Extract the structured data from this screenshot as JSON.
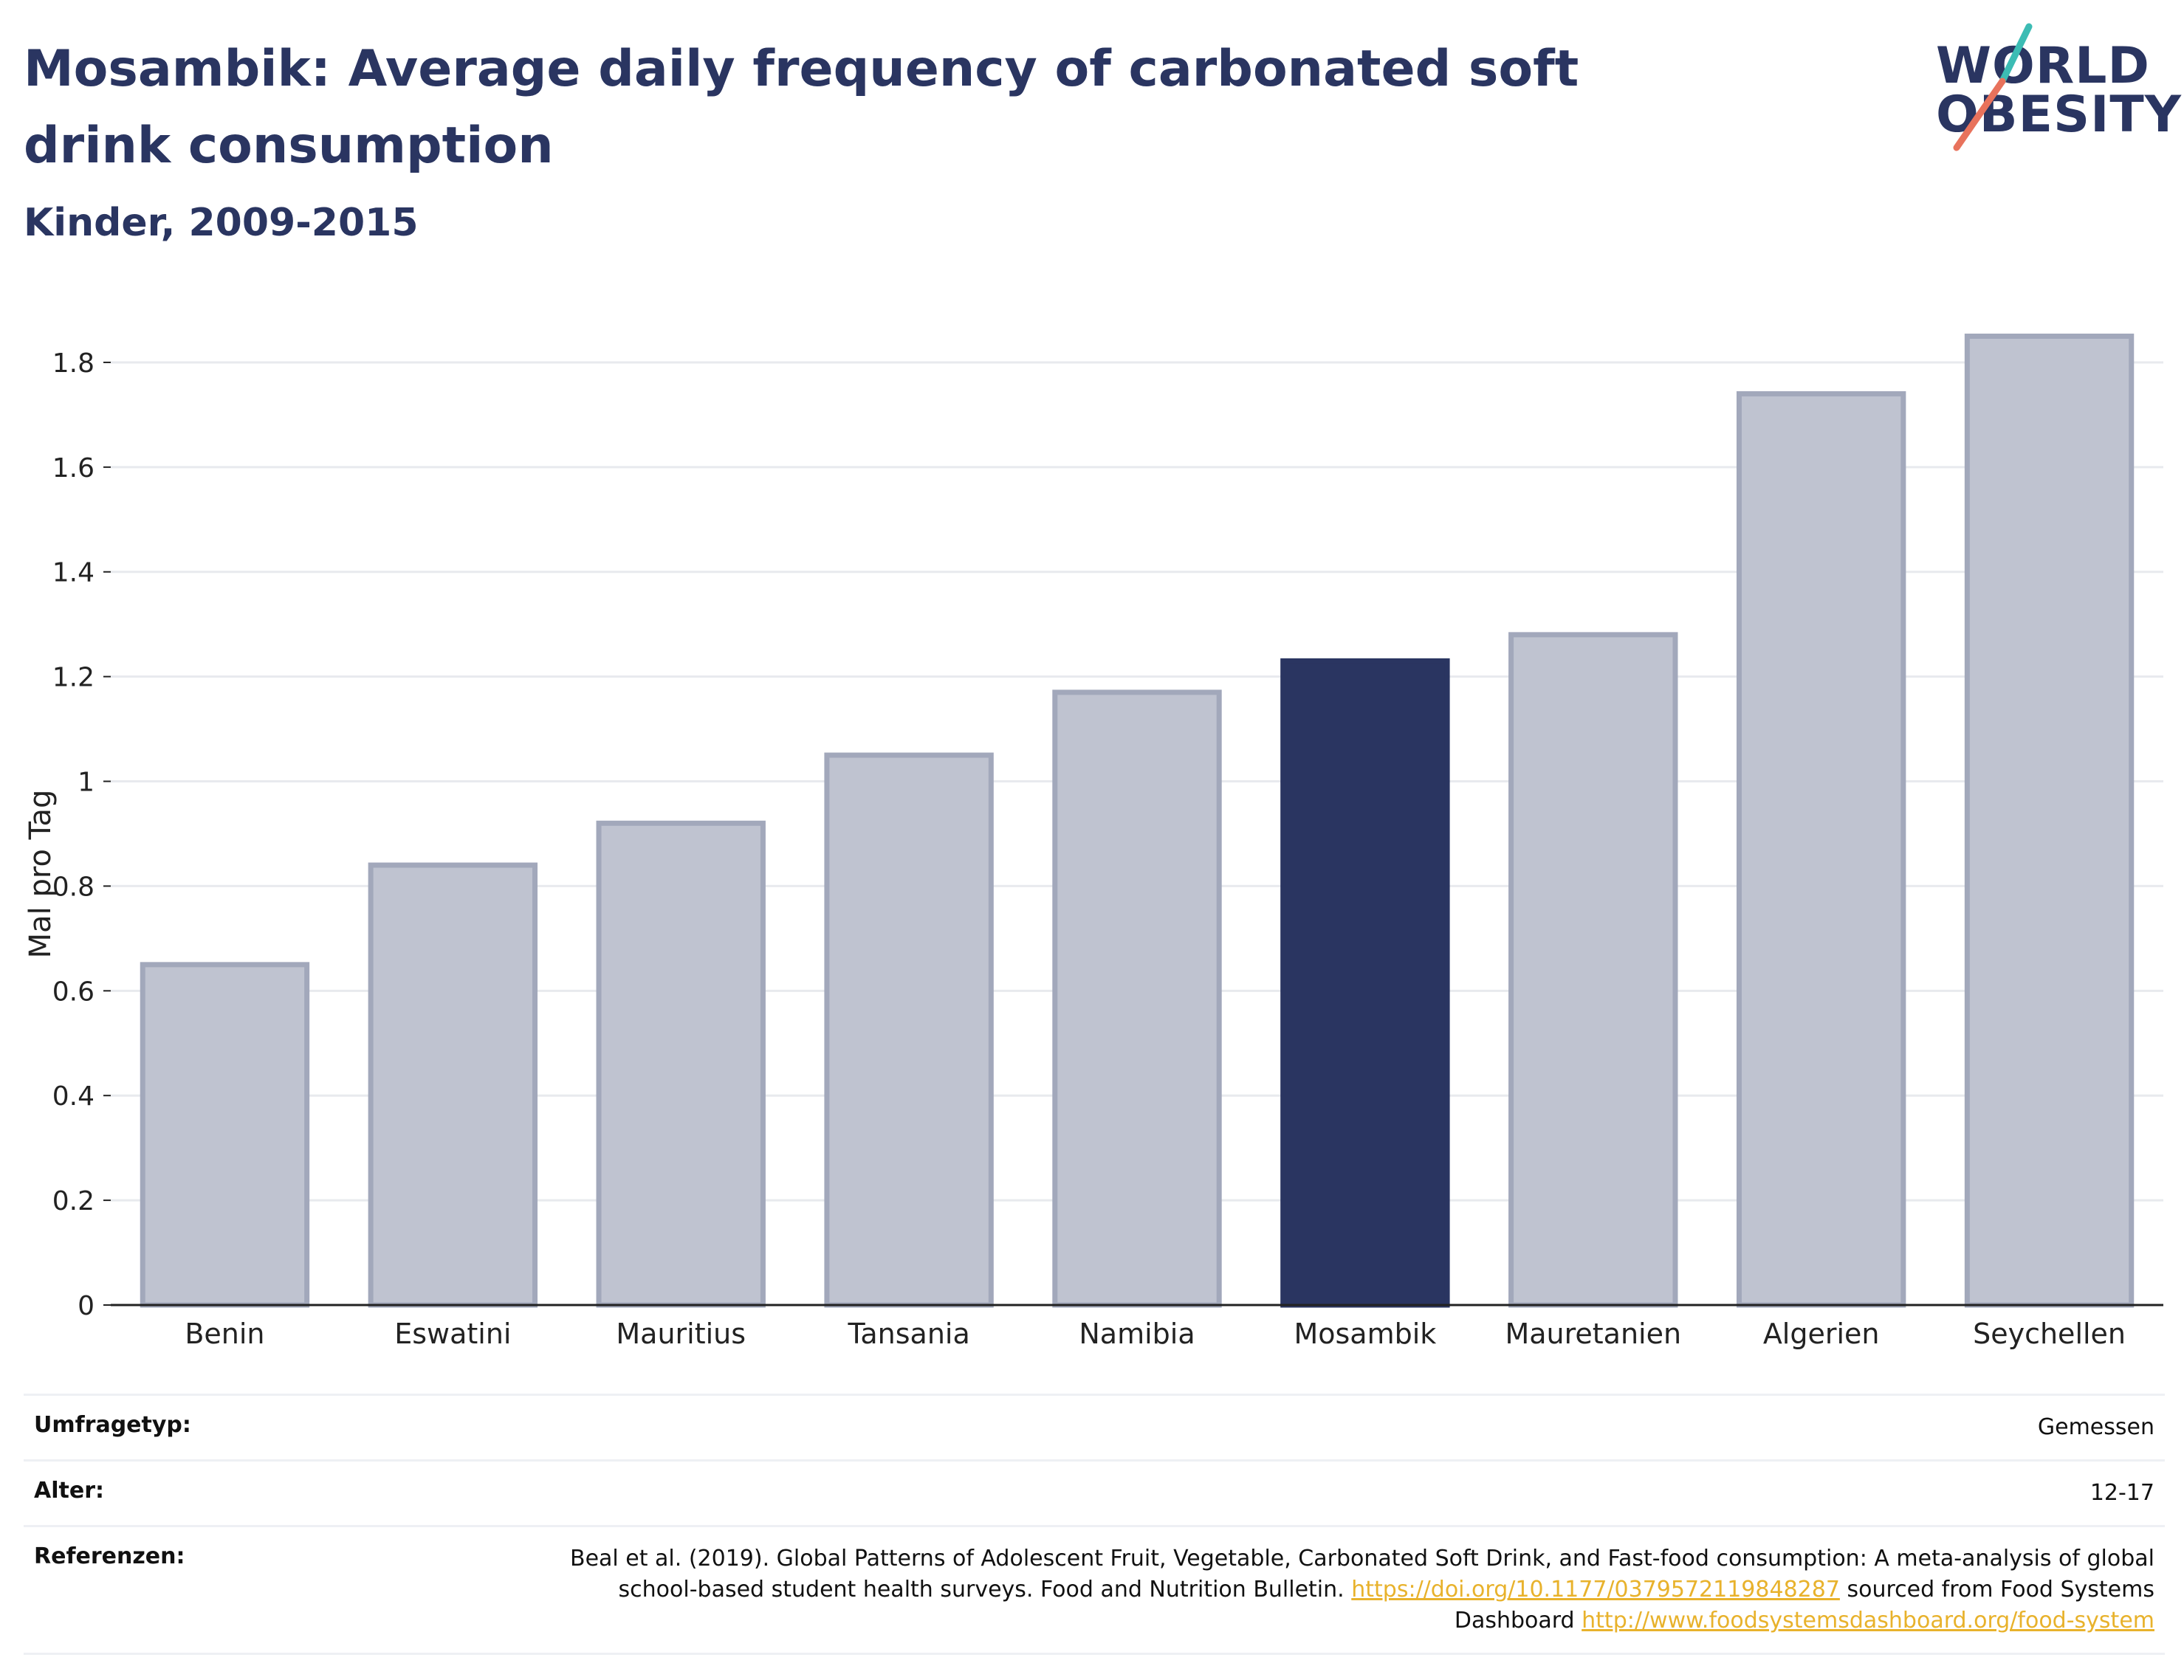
{
  "header": {
    "title": "Mosambik: Average daily frequency of carbonated soft drink consumption",
    "subtitle": "Kinder, 2009-2015"
  },
  "logo": {
    "line1": "WORLD",
    "line2": "OBESITY",
    "accent_teal": "#3cbcb4",
    "accent_coral": "#e8725c"
  },
  "colors": {
    "bar": "#bfc3d0",
    "bar_edge": "#a2a8bb",
    "highlight": "#2a3561",
    "grid": "#e8eaee",
    "axis": "#222222",
    "link": "#e8b22c"
  },
  "chart_data": {
    "type": "bar",
    "title": "Mosambik: Average daily frequency of carbonated soft drink consumption",
    "subtitle": "Kinder, 2009-2015",
    "xlabel": "",
    "ylabel": "Mal pro Tag",
    "categories": [
      "Benin",
      "Eswatini",
      "Mauritius",
      "Tansania",
      "Namibia",
      "Mosambik",
      "Mauretanien",
      "Algerien",
      "Seychellen"
    ],
    "values": [
      0.65,
      0.84,
      0.92,
      1.05,
      1.17,
      1.23,
      1.28,
      1.74,
      1.85
    ],
    "highlight": "Mosambik",
    "ylim": [
      0,
      1.9
    ],
    "yticks": [
      0,
      0.2,
      0.4,
      0.6,
      0.8,
      1,
      1.2,
      1.4,
      1.6,
      1.8
    ],
    "ytick_labels": [
      "0",
      "0.2",
      "0.4",
      "0.6",
      "0.8",
      "1",
      "1.2",
      "1.4",
      "1.6",
      "1.8"
    ],
    "grid": true,
    "legend": "none"
  },
  "info": {
    "survey_key": "Umfragetyp:",
    "survey_val": "Gemessen",
    "age_key": "Alter:",
    "age_val": "12-17",
    "ref_key": "Referenzen:",
    "ref_text1": "Beal et al. (2019). Global Patterns of Adolescent Fruit, Vegetable, Carbonated Soft Drink, and Fast-food consumption: A meta-analysis of global school-based student health surveys. Food and Nutrition Bulletin.",
    "ref_link1": "https://doi.org/10.1177/0379572119848287",
    "ref_text2": "sourced from Food Systems Dashboard",
    "ref_link2": "http://www.foodsystemsdashboard.org/food-system"
  }
}
